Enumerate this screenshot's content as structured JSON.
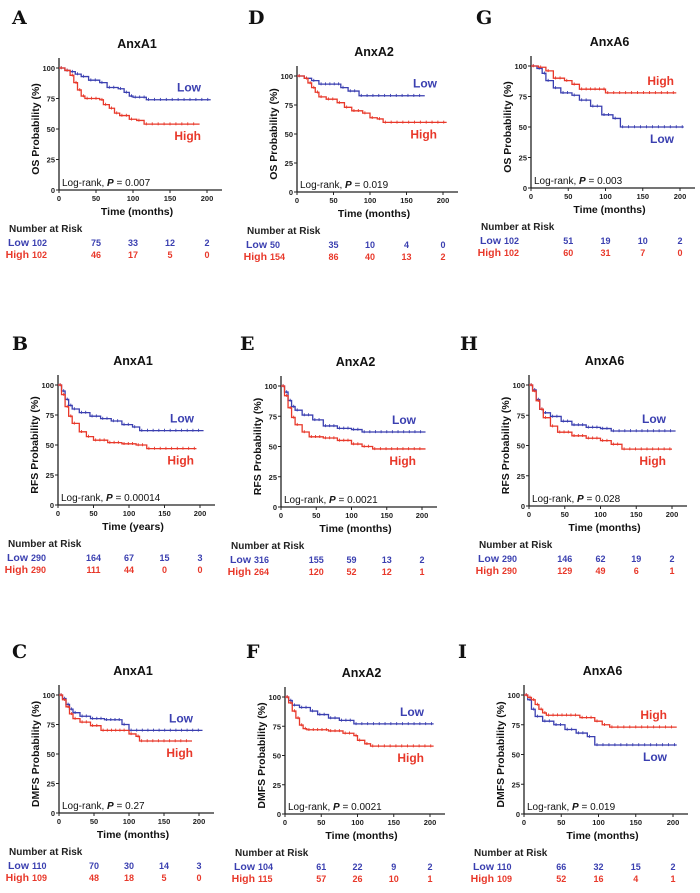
{
  "colors": {
    "low": "#3a3fb0",
    "high": "#e8382a",
    "axis": "#222222",
    "text": "#111111"
  },
  "risk_header": "Number at Risk",
  "logrank_prefix": "Log-rank, ",
  "p_label": "P",
  "chart_data": [
    {
      "panel": "A",
      "type": "line",
      "title": "AnxA1",
      "ylabel": "OS Probability (%)",
      "xlabel": "Time (months)",
      "xlim": [
        0,
        200
      ],
      "ylim": [
        0,
        100
      ],
      "xticks": [
        0,
        50,
        100,
        150,
        200
      ],
      "yticks": [
        0,
        25,
        50,
        75,
        100
      ],
      "pvalue": "0.007",
      "labels": {
        "low": "Low",
        "high": "High"
      },
      "series": [
        {
          "name": "Low",
          "x": [
            0,
            8,
            15,
            22,
            30,
            40,
            55,
            65,
            80,
            88,
            95,
            100,
            118,
            205
          ],
          "y": [
            100,
            98,
            97,
            95,
            93,
            90,
            88,
            84,
            83,
            80,
            77,
            76,
            74,
            74
          ]
        },
        {
          "name": "High",
          "x": [
            0,
            8,
            15,
            20,
            25,
            30,
            35,
            55,
            60,
            68,
            75,
            82,
            95,
            105,
            115,
            190
          ],
          "y": [
            100,
            98,
            94,
            88,
            82,
            77,
            75,
            74,
            70,
            67,
            63,
            61,
            58,
            57,
            54,
            54
          ]
        }
      ],
      "risk_times": [
        0,
        50,
        100,
        150,
        200
      ],
      "risk_low": [
        "102",
        "75",
        "33",
        "12",
        "2"
      ],
      "risk_high": [
        "102",
        "46",
        "17",
        "5",
        "0"
      ]
    },
    {
      "panel": "D",
      "type": "line",
      "title": "AnxA2",
      "ylabel": "OS Probability (%)",
      "xlabel": "Time (months)",
      "xlim": [
        0,
        200
      ],
      "ylim": [
        0,
        100
      ],
      "xticks": [
        0,
        50,
        100,
        150,
        200
      ],
      "yticks": [
        0,
        25,
        50,
        75,
        100
      ],
      "pvalue": "0.019",
      "labels": {
        "low": "Low",
        "high": "High"
      },
      "series": [
        {
          "name": "Low",
          "x": [
            0,
            10,
            20,
            30,
            60,
            70,
            85,
            175
          ],
          "y": [
            100,
            98,
            96,
            93,
            90,
            87,
            83,
            83
          ]
        },
        {
          "name": "High",
          "x": [
            0,
            10,
            15,
            20,
            25,
            30,
            40,
            55,
            65,
            75,
            90,
            100,
            110,
            118,
            205
          ],
          "y": [
            100,
            98,
            94,
            90,
            86,
            82,
            80,
            77,
            73,
            70,
            68,
            64,
            63,
            60,
            60
          ]
        }
      ],
      "risk_times": [
        0,
        50,
        100,
        150,
        200
      ],
      "risk_low": [
        "50",
        "35",
        "10",
        "4",
        "0"
      ],
      "risk_high": [
        "154",
        "86",
        "40",
        "13",
        "2"
      ]
    },
    {
      "panel": "G",
      "type": "line",
      "title": "AnxA6",
      "ylabel": "OS Probability (%)",
      "xlabel": "Time (months)",
      "xlim": [
        0,
        200
      ],
      "ylim": [
        0,
        100
      ],
      "xticks": [
        0,
        50,
        100,
        150,
        200
      ],
      "yticks": [
        0,
        25,
        50,
        75,
        100
      ],
      "pvalue": "0.003",
      "labels": {
        "low": "Low",
        "high": "High"
      },
      "series": [
        {
          "name": "Low",
          "x": [
            0,
            8,
            15,
            20,
            30,
            40,
            55,
            65,
            80,
            95,
            110,
            120,
            205
          ],
          "y": [
            100,
            98,
            94,
            88,
            82,
            78,
            76,
            72,
            67,
            60,
            57,
            50,
            50
          ]
        },
        {
          "name": "High",
          "x": [
            0,
            10,
            20,
            30,
            45,
            55,
            65,
            100,
            195
          ],
          "y": [
            100,
            99,
            96,
            90,
            88,
            85,
            81,
            78,
            78
          ]
        }
      ],
      "risk_times": [
        0,
        50,
        100,
        150,
        200
      ],
      "risk_low": [
        "102",
        "51",
        "19",
        "10",
        "2"
      ],
      "risk_high": [
        "102",
        "60",
        "31",
        "7",
        "0"
      ]
    },
    {
      "panel": "B",
      "type": "line",
      "title": "AnxA1",
      "ylabel": "RFS Probability (%)",
      "xlabel": "Time (years)",
      "xlim": [
        0,
        200
      ],
      "ylim": [
        0,
        100
      ],
      "xticks": [
        0,
        50,
        100,
        150,
        200
      ],
      "yticks": [
        0,
        25,
        50,
        75,
        100
      ],
      "pvalue": "0.00014",
      "labels": {
        "low": "Low",
        "high": "High"
      },
      "series": [
        {
          "name": "Low",
          "x": [
            0,
            5,
            10,
            15,
            20,
            30,
            45,
            60,
            75,
            90,
            105,
            115,
            205
          ],
          "y": [
            100,
            95,
            88,
            83,
            80,
            77,
            74,
            72,
            70,
            67,
            65,
            62,
            62
          ]
        },
        {
          "name": "High",
          "x": [
            0,
            5,
            10,
            15,
            20,
            30,
            40,
            50,
            70,
            90,
            110,
            125,
            195
          ],
          "y": [
            100,
            92,
            82,
            74,
            68,
            61,
            57,
            54,
            52,
            51,
            50,
            47,
            47
          ]
        }
      ],
      "risk_times": [
        0,
        50,
        100,
        150,
        200
      ],
      "risk_low": [
        "290",
        "164",
        "67",
        "15",
        "3"
      ],
      "risk_high": [
        "290",
        "111",
        "44",
        "0",
        "0"
      ]
    },
    {
      "panel": "E",
      "type": "line",
      "title": "AnxA2",
      "ylabel": "RFS Probability (%)",
      "xlabel": "Time (months)",
      "xlim": [
        0,
        200
      ],
      "ylim": [
        0,
        100
      ],
      "xticks": [
        0,
        50,
        100,
        150,
        200
      ],
      "yticks": [
        0,
        25,
        50,
        75,
        100
      ],
      "pvalue": "0.0021",
      "labels": {
        "low": "Low",
        "high": "High"
      },
      "series": [
        {
          "name": "Low",
          "x": [
            0,
            5,
            10,
            15,
            20,
            30,
            45,
            60,
            80,
            100,
            115,
            205
          ],
          "y": [
            100,
            95,
            88,
            83,
            80,
            76,
            72,
            67,
            65,
            64,
            62,
            62
          ]
        },
        {
          "name": "High",
          "x": [
            0,
            5,
            10,
            15,
            20,
            30,
            40,
            60,
            80,
            100,
            115,
            130,
            205
          ],
          "y": [
            100,
            92,
            82,
            74,
            68,
            62,
            58,
            57,
            55,
            52,
            50,
            48,
            48
          ]
        }
      ],
      "risk_times": [
        0,
        50,
        100,
        150,
        200
      ],
      "risk_low": [
        "316",
        "155",
        "59",
        "13",
        "2"
      ],
      "risk_high": [
        "264",
        "120",
        "52",
        "12",
        "1"
      ]
    },
    {
      "panel": "H",
      "type": "line",
      "title": "AnxA6",
      "ylabel": "RFS Probability (%)",
      "xlabel": "Time (months)",
      "xlim": [
        0,
        200
      ],
      "ylim": [
        0,
        100
      ],
      "xticks": [
        0,
        50,
        100,
        150,
        200
      ],
      "yticks": [
        0,
        25,
        50,
        75,
        100
      ],
      "pvalue": "0.028",
      "labels": {
        "low": "Low",
        "high": "High"
      },
      "series": [
        {
          "name": "Low",
          "x": [
            0,
            5,
            10,
            15,
            20,
            30,
            45,
            60,
            80,
            100,
            115,
            205
          ],
          "y": [
            100,
            96,
            88,
            80,
            77,
            74,
            70,
            67,
            65,
            64,
            62,
            62
          ]
        },
        {
          "name": "High",
          "x": [
            0,
            5,
            10,
            15,
            20,
            30,
            40,
            60,
            80,
            100,
            115,
            130,
            200
          ],
          "y": [
            100,
            95,
            87,
            80,
            73,
            66,
            61,
            58,
            56,
            54,
            51,
            47,
            47
          ]
        }
      ],
      "risk_times": [
        0,
        50,
        100,
        150,
        200
      ],
      "risk_low": [
        "290",
        "146",
        "62",
        "19",
        "2"
      ],
      "risk_high": [
        "290",
        "129",
        "49",
        "6",
        "1"
      ]
    },
    {
      "panel": "C",
      "type": "line",
      "title": "AnxA1",
      "ylabel": "DMFS Probability (%)",
      "xlabel": "Time (months)",
      "xlim": [
        0,
        200
      ],
      "ylim": [
        0,
        100
      ],
      "xticks": [
        0,
        50,
        100,
        150,
        200
      ],
      "yticks": [
        0,
        25,
        50,
        75,
        100
      ],
      "pvalue": "0.27",
      "labels": {
        "low": "Low",
        "high": "High"
      },
      "series": [
        {
          "name": "Low",
          "x": [
            0,
            5,
            10,
            15,
            20,
            30,
            45,
            65,
            90,
            100,
            205
          ],
          "y": [
            100,
            97,
            92,
            88,
            85,
            82,
            80,
            79,
            75,
            70,
            70
          ]
        },
        {
          "name": "High",
          "x": [
            0,
            5,
            10,
            15,
            20,
            30,
            45,
            60,
            100,
            110,
            115,
            190
          ],
          "y": [
            100,
            96,
            90,
            84,
            80,
            77,
            74,
            70,
            67,
            65,
            61,
            61
          ]
        }
      ],
      "risk_times": [
        0,
        50,
        100,
        150,
        200
      ],
      "risk_low": [
        "110",
        "70",
        "30",
        "14",
        "3"
      ],
      "risk_high": [
        "109",
        "48",
        "18",
        "5",
        "0"
      ]
    },
    {
      "panel": "F",
      "type": "line",
      "title": "AnxA2",
      "ylabel": "DMFS Probability (%)",
      "xlabel": "Time (months)",
      "xlim": [
        0,
        200
      ],
      "ylim": [
        0,
        100
      ],
      "xticks": [
        0,
        50,
        100,
        150,
        200
      ],
      "yticks": [
        0,
        25,
        50,
        75,
        100
      ],
      "pvalue": "0.0021",
      "labels": {
        "low": "Low",
        "high": "High"
      },
      "series": [
        {
          "name": "Low",
          "x": [
            0,
            5,
            10,
            20,
            35,
            45,
            60,
            75,
            95,
            205
          ],
          "y": [
            100,
            97,
            93,
            91,
            88,
            85,
            82,
            80,
            77,
            77
          ]
        },
        {
          "name": "High",
          "x": [
            0,
            5,
            10,
            15,
            20,
            25,
            30,
            60,
            80,
            95,
            100,
            110,
            118,
            205
          ],
          "y": [
            100,
            95,
            88,
            82,
            76,
            73,
            72,
            71,
            69,
            67,
            63,
            60,
            58,
            58
          ]
        }
      ],
      "risk_times": [
        0,
        50,
        100,
        150,
        200
      ],
      "risk_low": [
        "104",
        "61",
        "22",
        "9",
        "2"
      ],
      "risk_high": [
        "115",
        "57",
        "26",
        "10",
        "1"
      ]
    },
    {
      "panel": "I",
      "type": "line",
      "title": "AnxA6",
      "ylabel": "DMFS Probability (%)",
      "xlabel": "Time (months)",
      "xlim": [
        0,
        200
      ],
      "ylim": [
        0,
        100
      ],
      "xticks": [
        0,
        50,
        100,
        150,
        200
      ],
      "yticks": [
        0,
        25,
        50,
        75,
        100
      ],
      "pvalue": "0.019",
      "labels": {
        "low": "Low",
        "high": "High"
      },
      "series": [
        {
          "name": "Low",
          "x": [
            0,
            5,
            10,
            15,
            25,
            40,
            55,
            70,
            85,
            95,
            205
          ],
          "y": [
            100,
            96,
            88,
            82,
            78,
            75,
            71,
            68,
            65,
            58,
            58
          ]
        },
        {
          "name": "High",
          "x": [
            0,
            5,
            10,
            15,
            20,
            25,
            30,
            75,
            95,
            105,
            115,
            205
          ],
          "y": [
            100,
            98,
            96,
            92,
            88,
            85,
            83,
            81,
            78,
            75,
            73,
            73
          ]
        }
      ],
      "risk_times": [
        0,
        50,
        100,
        150,
        200
      ],
      "risk_low": [
        "110",
        "66",
        "32",
        "15",
        "2"
      ],
      "risk_high": [
        "109",
        "52",
        "16",
        "4",
        "1"
      ]
    }
  ]
}
